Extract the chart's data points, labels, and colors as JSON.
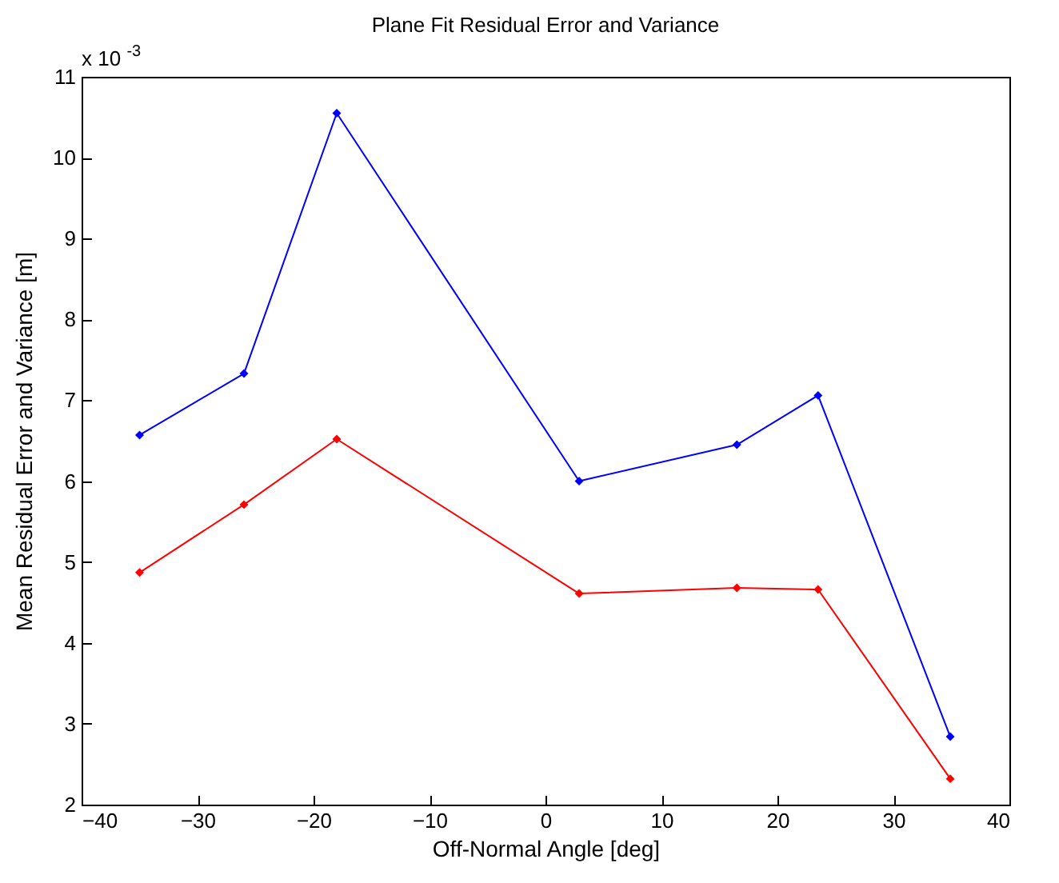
{
  "chart_data": {
    "type": "line",
    "title": "Plane Fit Residual Error and Variance",
    "xlabel": "Off-Normal Angle [deg]",
    "ylabel": "Mean Residual Error and Variance [m]",
    "annotations": [
      "x 10$^{-3}$"
    ],
    "x": [
      -35,
      -26,
      -18,
      2.9,
      16.5,
      23.5,
      34.9
    ],
    "series": [
      {
        "color": "#0000ff",
        "values": [
          6.57,
          7.33,
          10.55,
          6.0,
          6.45,
          7.06,
          2.84
        ]
      },
      {
        "color": "#ff0000",
        "values": [
          4.87,
          5.71,
          6.52,
          4.61,
          4.68,
          4.66,
          2.32
        ]
      }
    ],
    "xlim": [
      -40,
      40
    ],
    "xticks": [
      -40,
      -30,
      -20,
      -10,
      0,
      10,
      20,
      30,
      40
    ],
    "ylim": [
      2,
      11
    ],
    "yticks": [
      2,
      3,
      4,
      5,
      6,
      7,
      8,
      9,
      10,
      11
    ],
    "grid": false,
    "legend": false,
    "marker": "diamond",
    "line_style": "solid"
  }
}
